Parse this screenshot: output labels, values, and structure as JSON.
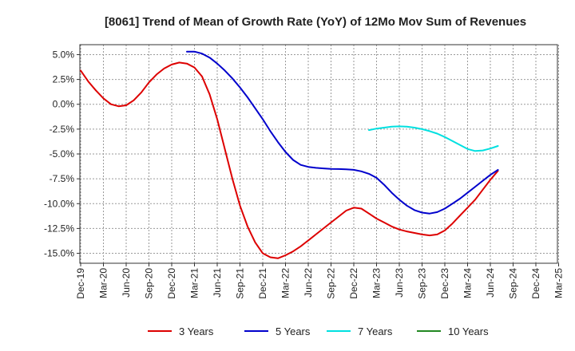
{
  "chart_data": {
    "type": "line",
    "title": "[8061]  Trend of Mean of Growth Rate (YoY) of 12Mo Mov Sum of Revenues",
    "xlabel": "",
    "ylabel": "",
    "ylim": [
      -16.0,
      6.0
    ],
    "grid": true,
    "legend_position": "bottom",
    "x_tick_labels": [
      "Dec-19",
      "Mar-20",
      "Jun-20",
      "Sep-20",
      "Dec-20",
      "Mar-21",
      "Jun-21",
      "Sep-21",
      "Dec-21",
      "Mar-22",
      "Jun-22",
      "Sep-22",
      "Dec-22",
      "Mar-23",
      "Jun-23",
      "Sep-23",
      "Dec-23",
      "Mar-24",
      "Jun-24",
      "Sep-24",
      "Dec-24",
      "Mar-25"
    ],
    "y_ticks": [
      5.0,
      2.5,
      0.0,
      -2.5,
      -5.0,
      -7.5,
      -10.0,
      -12.5,
      -15.0
    ],
    "y_tick_labels": [
      "5.0%",
      "2.5%",
      "0.0%",
      "-2.5%",
      "-5.0%",
      "-7.5%",
      "-10.0%",
      "-12.5%",
      "-15.0%"
    ],
    "series": [
      {
        "name": "3 Years",
        "color": "#dd0000",
        "x": [
          0,
          1,
          2,
          3,
          4,
          5,
          6,
          7,
          8,
          9,
          10,
          11,
          12,
          13,
          14,
          15,
          16,
          17,
          18,
          19,
          20,
          21,
          22,
          23,
          24,
          25,
          26,
          27,
          28,
          29,
          30,
          31,
          32,
          33,
          34,
          35,
          36,
          37,
          38,
          39,
          40,
          41,
          42,
          43,
          44,
          45,
          46,
          47,
          48,
          49,
          50,
          51,
          52,
          53,
          54,
          55,
          56,
          57,
          58,
          59,
          60
        ],
        "values": [
          3.4,
          2.3,
          1.4,
          0.6,
          0.0,
          -0.2,
          -0.1,
          0.4,
          1.2,
          2.2,
          3.0,
          3.6,
          4.0,
          4.2,
          4.1,
          3.7,
          2.8,
          1.0,
          -1.5,
          -4.5,
          -7.5,
          -10.2,
          -12.3,
          -13.9,
          -15.0,
          -15.4,
          -15.5,
          -15.2,
          -14.8,
          -14.3,
          -13.7,
          -13.1,
          -12.5,
          -11.9,
          -11.3,
          -10.7,
          -10.4,
          -10.5,
          -11.0,
          -11.5,
          -11.9,
          -12.3,
          -12.6,
          -12.8,
          -12.95,
          -13.1,
          -13.2,
          -13.1,
          -12.7,
          -12.0,
          -11.2,
          -10.4,
          -9.6,
          -8.6,
          -7.6,
          -6.7,
          null,
          null,
          null,
          null,
          null
        ]
      },
      {
        "name": "5 Years",
        "color": "#0000cc",
        "x": [
          14,
          15,
          16,
          17,
          18,
          19,
          20,
          21,
          22,
          23,
          24,
          25,
          26,
          27,
          28,
          29,
          30,
          31,
          32,
          33,
          34,
          35,
          36,
          37,
          38,
          39,
          40,
          41,
          42,
          43,
          44,
          45,
          46,
          47,
          48,
          49,
          50,
          51,
          52,
          53,
          54,
          55
        ],
        "values": [
          5.3,
          5.3,
          5.1,
          4.7,
          4.1,
          3.4,
          2.6,
          1.7,
          0.7,
          -0.4,
          -1.5,
          -2.7,
          -3.8,
          -4.8,
          -5.6,
          -6.1,
          -6.3,
          -6.4,
          -6.45,
          -6.5,
          -6.52,
          -6.55,
          -6.6,
          -6.75,
          -7.0,
          -7.4,
          -8.1,
          -8.9,
          -9.6,
          -10.2,
          -10.65,
          -10.9,
          -11.0,
          -10.85,
          -10.5,
          -10.0,
          -9.5,
          -8.9,
          -8.3,
          -7.7,
          -7.1,
          -6.6
        ]
      },
      {
        "name": "7 Years",
        "color": "#00e0e0",
        "x": [
          38,
          39,
          40,
          41,
          42,
          43,
          44,
          45,
          46,
          47,
          48,
          49,
          50,
          51,
          52,
          53,
          54,
          55
        ],
        "values": [
          -2.6,
          -2.45,
          -2.35,
          -2.25,
          -2.22,
          -2.25,
          -2.35,
          -2.5,
          -2.7,
          -2.95,
          -3.3,
          -3.7,
          -4.1,
          -4.5,
          -4.7,
          -4.65,
          -4.45,
          -4.2
        ]
      },
      {
        "name": "10 Years",
        "color": "#228822",
        "x": [],
        "values": []
      }
    ]
  }
}
